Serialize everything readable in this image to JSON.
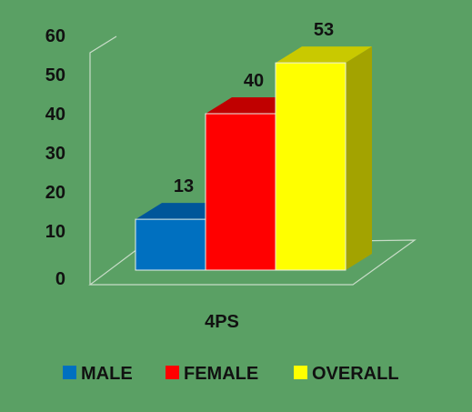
{
  "chart_data": {
    "type": "bar",
    "categories": [
      "4PS"
    ],
    "series": [
      {
        "name": "MALE",
        "values": [
          13
        ],
        "color": "#0070c0",
        "top_color": "#00569a",
        "side_color": "#00569a"
      },
      {
        "name": "FEMALE",
        "values": [
          40
        ],
        "color": "#ff0000",
        "top_color": "#c00000",
        "side_color": "#c00000"
      },
      {
        "name": "OVERALL",
        "values": [
          53
        ],
        "color": "#ffff00",
        "top_color": "#c9c900",
        "side_color": "#a3a300"
      }
    ],
    "y_ticks": [
      "0",
      "10",
      "20",
      "30",
      "40",
      "50",
      "60"
    ],
    "ylim": [
      0,
      60
    ],
    "title": "",
    "xlabel": "",
    "ylabel": "",
    "grid": false,
    "legend_position": "bottom"
  },
  "colors": {
    "background": "#5aa064",
    "axis_line": "#c8dcc8"
  }
}
